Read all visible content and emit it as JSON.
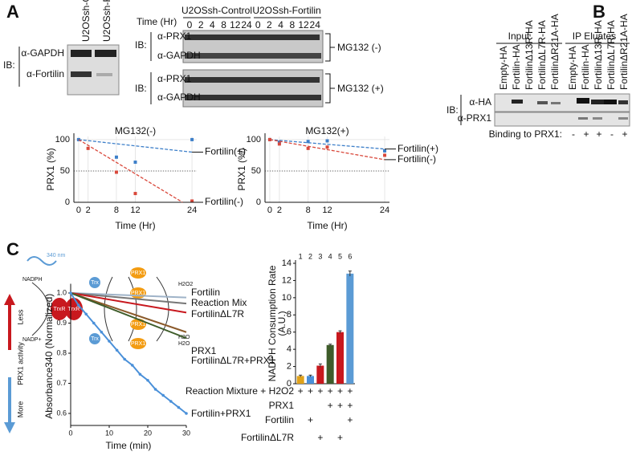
{
  "panel_labels": [
    "A",
    "B",
    "C"
  ],
  "blot_a": {
    "loading": {
      "lanes": [
        "U2OSsh-Control",
        "U2OSsh-Fortilin"
      ],
      "ib": "IB:",
      "rows": [
        "α-GAPDH",
        "α-Fortilin"
      ]
    },
    "time": {
      "label": "Time (Hr)",
      "groups": [
        "U2OSsh-Control",
        "U2OSsh-Fortilin"
      ],
      "times": [
        "0",
        "2",
        "4",
        "8",
        "12",
        "24"
      ]
    },
    "blots": [
      {
        "ib": "IB:",
        "rows": [
          "α-PRX1",
          "α-GAPDH"
        ],
        "condition": "MG132 (-)"
      },
      {
        "ib": "IB:",
        "rows": [
          "α-PRX1",
          "α-GAPDH"
        ],
        "condition": "MG132 (+)"
      }
    ]
  },
  "blot_b": {
    "groups": [
      "Input",
      "IP Eluates"
    ],
    "lanes": [
      "Empty-HA",
      "Fortilin-HA",
      "FortilinΔ13R-HA",
      "FortilinΔL7R-HA",
      "FortilinΔR21A-HA"
    ],
    "ib": "IB:",
    "rows": [
      "α-HA",
      "α-PRX1"
    ],
    "binding_label": "Binding to PRX1:",
    "binding": [
      "-",
      "+",
      "+",
      "-",
      "+"
    ]
  },
  "diagram": {
    "labels": [
      "340 nm",
      "NADPH",
      "NADP+",
      "TrxR",
      "TrxR",
      "Trx",
      "Trx",
      "PRX1",
      "PRX1",
      "PRX1",
      "PRX1",
      "H2O2",
      "H2O",
      "H2O"
    ]
  },
  "chart_data": [
    {
      "type": "scatter",
      "title": "MG132(-)",
      "xlabel": "Time (Hr)",
      "ylabel": "PRX1 (%)",
      "xlim": [
        -1,
        25
      ],
      "ylim": [
        0,
        105
      ],
      "xticks": [
        0,
        2,
        8,
        12,
        24
      ],
      "yticks": [
        0,
        50,
        100
      ],
      "grid": true,
      "hline": 50,
      "series": [
        {
          "name": "Fortilin(+)",
          "color": "#3d7fc9",
          "x": [
            0,
            8,
            12,
            24
          ],
          "values": [
            100,
            72,
            64,
            100
          ],
          "fit": {
            "x": [
              0,
              24
            ],
            "values": [
              100,
              80
            ]
          }
        },
        {
          "name": "Fortilin(-)",
          "color": "#d9483b",
          "x": [
            2,
            8,
            12,
            24
          ],
          "values": [
            86,
            48,
            14,
            2
          ],
          "fit": {
            "x": [
              0,
              22
            ],
            "values": [
              100,
              0
            ]
          }
        }
      ]
    },
    {
      "type": "scatter",
      "title": "MG132(+)",
      "xlabel": "Time (Hr)",
      "ylabel": "PRX1 (%)",
      "xlim": [
        -1,
        25
      ],
      "ylim": [
        0,
        105
      ],
      "xticks": [
        0,
        2,
        8,
        12,
        24
      ],
      "yticks": [
        0,
        50,
        100
      ],
      "grid": true,
      "hline": 50,
      "series": [
        {
          "name": "Fortilin(+)",
          "color": "#3d7fc9",
          "x": [
            0,
            2,
            8,
            12,
            24
          ],
          "values": [
            100,
            96,
            97,
            98,
            82
          ],
          "fit": {
            "x": [
              0,
              24
            ],
            "values": [
              100,
              85
            ]
          }
        },
        {
          "name": "Fortilin(-)",
          "color": "#d9483b",
          "x": [
            0,
            2,
            8,
            12,
            24
          ],
          "values": [
            100,
            93,
            86,
            88,
            75
          ],
          "fit": {
            "x": [
              0,
              24
            ],
            "values": [
              100,
              68
            ]
          }
        }
      ]
    },
    {
      "type": "line",
      "xlabel": "Time (min)",
      "ylabel": "Absorbance340 (Normalized)",
      "annotations": [
        "Less",
        "PRX1 activity",
        "More"
      ],
      "xlim": [
        0,
        30
      ],
      "ylim": [
        0.56,
        1.02
      ],
      "xticks": [
        0,
        10,
        20,
        30
      ],
      "yticks": [
        0.6,
        0.7,
        0.8,
        0.9,
        {
          "value": 1,
          "label": "1.0"
        }
      ],
      "series": [
        {
          "name": "Fortilin",
          "color": "#9fb3c8",
          "x": [
            0,
            30
          ],
          "values": [
            1,
            0.985
          ]
        },
        {
          "name": "Reaction Mix",
          "color": "#777777",
          "x": [
            0,
            30
          ],
          "values": [
            1,
            0.965
          ]
        },
        {
          "name": "FortilinΔL7R",
          "color": "#c8181e",
          "x": [
            0,
            30
          ],
          "values": [
            1,
            0.935
          ]
        },
        {
          "name": "PRX1",
          "color": "#8b5a2b",
          "x": [
            0,
            30
          ],
          "values": [
            1,
            0.87
          ]
        },
        {
          "name": "FortilinΔL7R+PRX1",
          "color": "#3e5c2a",
          "x": [
            0,
            30
          ],
          "values": [
            1,
            0.85
          ]
        },
        {
          "name": "Fortilin+PRX1",
          "color": "#4a90d9",
          "markers": true,
          "x": [
            0,
            2,
            4,
            6,
            8,
            10,
            12,
            14,
            16,
            18,
            20,
            22,
            24,
            26,
            28,
            30
          ],
          "values": [
            1,
            0.96,
            0.93,
            0.9,
            0.87,
            0.84,
            0.81,
            0.78,
            0.76,
            0.73,
            0.71,
            0.68,
            0.66,
            0.64,
            0.62,
            0.6
          ]
        }
      ]
    },
    {
      "type": "bar",
      "ylabel": [
        "NADPH Consumption Rate",
        "(A.U.)"
      ],
      "categories": [
        "1",
        "2",
        "3",
        "4",
        "5",
        "6"
      ],
      "values": [
        0.9,
        0.9,
        2.1,
        4.5,
        6.0,
        12.8
      ],
      "errors": [
        0.1,
        0.1,
        0.2,
        0.1,
        0.15,
        0.3
      ],
      "colors": [
        "#e0a21a",
        "#4a90d9",
        "#c8181e",
        "#3e5c2a",
        "#c8181e",
        "#5b9bd5"
      ],
      "ylim": [
        0,
        14
      ],
      "yticks": [
        0,
        2,
        4,
        6,
        8,
        10,
        12,
        14
      ],
      "table": [
        {
          "label": "Reaction Mixture + H2O2",
          "marks": [
            "+",
            "+",
            "+",
            "+",
            "+",
            "+"
          ]
        },
        {
          "label": "PRX1",
          "marks": [
            null,
            null,
            null,
            "+",
            "+",
            "+"
          ]
        },
        {
          "label": "Fortilin",
          "marks": [
            null,
            "+",
            null,
            null,
            null,
            "+"
          ]
        },
        {
          "label": "FortilinΔL7R",
          "marks": [
            null,
            null,
            "+",
            null,
            "+",
            null
          ]
        }
      ]
    }
  ]
}
